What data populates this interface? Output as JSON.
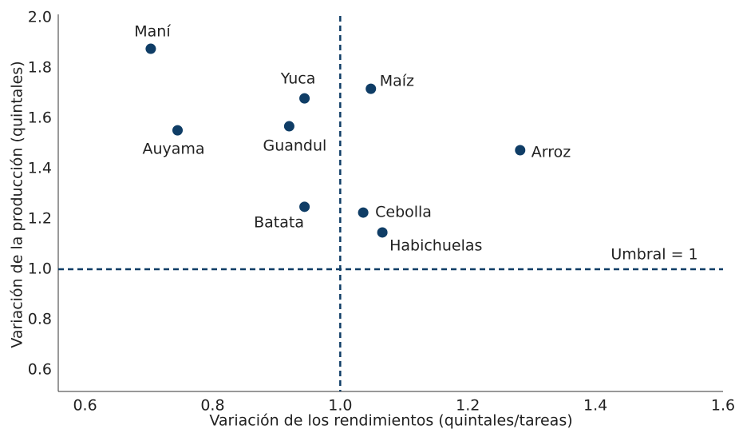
{
  "chart_data": {
    "type": "scatter",
    "x_label": "Variación de los rendimientos (quintales/tareas)",
    "y_label": "Variación de la producción (quintales)",
    "color": "#0f3d66",
    "points": [
      {
        "label": "Maní",
        "x": 0.703,
        "y": 1.876
      },
      {
        "label": "Auyama",
        "x": 0.745,
        "y": 1.552
      },
      {
        "label": "Yuca",
        "x": 0.944,
        "y": 1.679
      },
      {
        "label": "Guandul",
        "x": 0.92,
        "y": 1.568
      },
      {
        "label": "Batata",
        "x": 0.944,
        "y": 1.248
      },
      {
        "label": "Maíz",
        "x": 1.048,
        "y": 1.717
      },
      {
        "label": "Arroz",
        "x": 1.282,
        "y": 1.473
      },
      {
        "label": "Cebolla",
        "x": 1.036,
        "y": 1.225
      },
      {
        "label": "Habichuelas",
        "x": 1.066,
        "y": 1.146
      }
    ],
    "reference_x": 1,
    "reference_y": 1,
    "annotation": "Umbral = 1",
    "xlim": [
      0.558,
      1.6
    ],
    "xticks": [
      0.6,
      0.8,
      {
        "value": 1,
        "label": "1.0"
      },
      1.2,
      1.4,
      1.6
    ],
    "ylim": [
      0.514,
      2.0
    ],
    "yticks": [
      0.6,
      0.8,
      {
        "value": 1,
        "label": "1.0"
      },
      1.2,
      1.4,
      1.6,
      1.8,
      {
        "value": 2,
        "label": "2.0"
      }
    ]
  }
}
